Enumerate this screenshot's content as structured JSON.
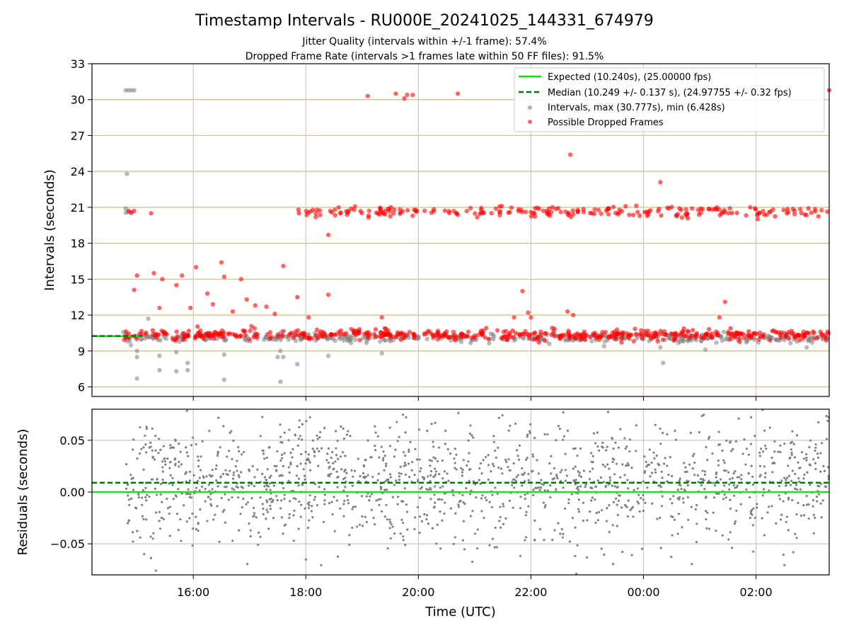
{
  "chart_data": [
    {
      "type": "scatter",
      "title": "Timestamp Intervals - RU000E_20241025_144331_674979",
      "subtitle_line1": "Jitter Quality (intervals within +/-1 frame): 57.4%",
      "subtitle_line2": "Dropped Frame Rate (intervals >1 frames late within 50 FF files): 91.5%",
      "xlabel": "",
      "ylabel": "Intervals (seconds)",
      "xlim_hours": [
        14.2,
        27.3
      ],
      "ylim": [
        5.2,
        33
      ],
      "yticks": [
        6,
        9,
        12,
        15,
        18,
        21,
        24,
        27,
        30,
        33
      ],
      "ytick_labels": [
        "6",
        "9",
        "12",
        "15",
        "18",
        "21",
        "24",
        "27",
        "30",
        "33"
      ],
      "grid": true,
      "legend_position": "top-right",
      "series": [
        {
          "name": "Expected (10.240s), (25.00000 fps)",
          "kind": "line",
          "y": 10.24,
          "color": "#00ee00",
          "style": "solid"
        },
        {
          "name": "Median (10.249 +/- 0.137 s), (24.97755 +/- 0.32 fps)",
          "kind": "line",
          "y": 10.249,
          "color": "#007700",
          "style": "dashed"
        },
        {
          "name": "Intervals, max (30.777s), min (6.428s)",
          "kind": "points",
          "color": "#808080",
          "bands": [
            {
              "x0": 14.75,
              "x1": 27.3,
              "ymean": 10.1,
              "yspread": 0.35,
              "count": 420
            }
          ],
          "points": [
            [
              14.8,
              30.78
            ],
            [
              14.85,
              30.78
            ],
            [
              14.9,
              30.78
            ],
            [
              14.95,
              30.78
            ],
            [
              14.82,
              23.8
            ],
            [
              14.8,
              20.9
            ],
            [
              14.85,
              20.6
            ],
            [
              14.9,
              20.5
            ],
            [
              14.8,
              20.55
            ],
            [
              15.0,
              6.7
            ],
            [
              15.0,
              9.0
            ],
            [
              15.0,
              8.5
            ],
            [
              15.4,
              8.6
            ],
            [
              15.4,
              7.4
            ],
            [
              15.7,
              7.3
            ],
            [
              15.7,
              8.9
            ],
            [
              15.9,
              7.4
            ],
            [
              15.9,
              8.0
            ],
            [
              15.2,
              11.7
            ],
            [
              16.55,
              6.6
            ],
            [
              16.55,
              8.7
            ],
            [
              17.5,
              8.5
            ],
            [
              17.55,
              9.0
            ],
            [
              17.6,
              8.5
            ],
            [
              17.55,
              6.43
            ],
            [
              17.85,
              7.9
            ],
            [
              18.4,
              8.6
            ],
            [
              19.35,
              8.8
            ],
            [
              23.3,
              9.4
            ],
            [
              24.3,
              9.3
            ],
            [
              24.35,
              8.0
            ],
            [
              25.1,
              9.1
            ],
            [
              26.9,
              9.3
            ]
          ]
        },
        {
          "name": "Possible Dropped Frames",
          "kind": "points",
          "color": "#ff0000",
          "bands": [
            {
              "x0": 14.75,
              "x1": 27.3,
              "ymean": 10.35,
              "yspread": 0.45,
              "count": 520
            },
            {
              "x0": 17.85,
              "x1": 27.3,
              "ymean": 20.6,
              "yspread": 0.45,
              "count": 230
            }
          ],
          "points": [
            [
              14.85,
              20.7
            ],
            [
              14.9,
              20.6
            ],
            [
              14.95,
              20.7
            ],
            [
              15.25,
              20.5
            ],
            [
              14.95,
              14.1
            ],
            [
              15.0,
              15.3
            ],
            [
              15.3,
              15.5
            ],
            [
              15.4,
              12.6
            ],
            [
              15.45,
              15.0
            ],
            [
              15.7,
              14.5
            ],
            [
              15.8,
              15.3
            ],
            [
              15.95,
              12.6
            ],
            [
              16.05,
              16.0
            ],
            [
              16.25,
              13.8
            ],
            [
              16.35,
              12.9
            ],
            [
              16.5,
              16.4
            ],
            [
              16.55,
              15.2
            ],
            [
              16.7,
              12.3
            ],
            [
              16.85,
              15.0
            ],
            [
              16.95,
              13.3
            ],
            [
              17.1,
              12.8
            ],
            [
              17.3,
              12.7
            ],
            [
              17.45,
              12.1
            ],
            [
              17.6,
              16.1
            ],
            [
              17.85,
              13.5
            ],
            [
              18.05,
              11.8
            ],
            [
              18.4,
              13.7
            ],
            [
              18.4,
              18.7
            ],
            [
              19.35,
              11.8
            ],
            [
              19.1,
              30.3
            ],
            [
              19.6,
              30.5
            ],
            [
              19.75,
              30.1
            ],
            [
              19.8,
              30.4
            ],
            [
              19.9,
              30.4
            ],
            [
              20.7,
              30.5
            ],
            [
              21.7,
              11.8
            ],
            [
              22.0,
              11.8
            ],
            [
              21.85,
              14.0
            ],
            [
              21.95,
              12.2
            ],
            [
              22.65,
              12.3
            ],
            [
              22.75,
              12.0
            ],
            [
              22.7,
              25.4
            ],
            [
              24.3,
              23.1
            ],
            [
              25.35,
              11.8
            ],
            [
              25.45,
              13.1
            ],
            [
              27.3,
              30.78
            ]
          ]
        }
      ]
    },
    {
      "type": "scatter",
      "xlabel": "Time (UTC)",
      "ylabel": "Residuals (seconds)",
      "xlim_hours": [
        14.2,
        27.3
      ],
      "ylim": [
        -0.08,
        0.08
      ],
      "yticks": [
        -0.05,
        0.0,
        0.05
      ],
      "ytick_labels": [
        "−0.05",
        "0.00",
        "0.05"
      ],
      "xticks_hours": [
        16,
        18,
        20,
        22,
        24,
        26
      ],
      "xtick_labels": [
        "16:00",
        "18:00",
        "20:00",
        "22:00",
        "00:00",
        "02:00"
      ],
      "grid": true,
      "series": [
        {
          "name": "",
          "kind": "line",
          "y": 0.0,
          "color": "#00ee00",
          "style": "solid"
        },
        {
          "name": "",
          "kind": "line",
          "y": 0.009,
          "color": "#007700",
          "style": "dashed"
        },
        {
          "name": "",
          "kind": "points",
          "color": "#808080",
          "x0": 14.8,
          "x1": 27.3,
          "ymean": 0.009,
          "yspread": 0.03,
          "count": 1500
        }
      ]
    }
  ]
}
